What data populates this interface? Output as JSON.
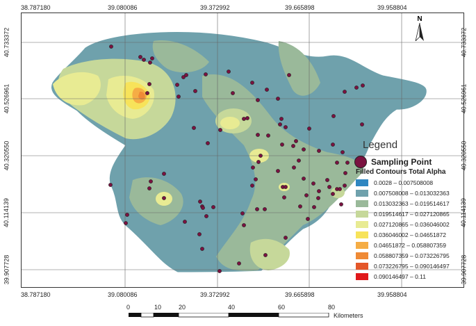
{
  "map": {
    "top_lon_labels": [
      "38.787180",
      "39.080086",
      "39.372992",
      "39.665898",
      "39.958804"
    ],
    "bottom_lon_labels": [
      "38.787180",
      "39.080086",
      "39.372992",
      "39.665898",
      "39.958804"
    ],
    "left_lat_labels": [
      "40.733372",
      "40.526961",
      "40.320550",
      "40.114139",
      "39.907728"
    ],
    "right_lat_labels": [
      "40.733372",
      "40.526961",
      "40.320550",
      "40.114139",
      "39.907728"
    ],
    "north_label": "N",
    "scale": {
      "ticks": [
        "0",
        "10",
        "20",
        "40",
        "60",
        "80"
      ],
      "unit": "Kilometers"
    }
  },
  "legend": {
    "title": "Legend",
    "sampling_label": "Sampling Point",
    "contours_title": "Filled Contours Total Alpha",
    "classes": [
      {
        "range": "0.0028 – 0.007508008",
        "color": "#2e86c1"
      },
      {
        "range": "0.007508008 – 0.013032363",
        "color": "#6fa1ac"
      },
      {
        "range": "0.013032363 – 0.019514617",
        "color": "#9ab99a"
      },
      {
        "range": "0.019514617 – 0.027120865",
        "color": "#c6d89a"
      },
      {
        "range": "0.027120865 – 0.036046002",
        "color": "#e8eb93"
      },
      {
        "range": "0.036046002 – 0.04651872",
        "color": "#f7e35a"
      },
      {
        "range": "0.04651872 – 0.058807359",
        "color": "#f5ad45"
      },
      {
        "range": "0.058807359 – 0.073226795",
        "color": "#ef8a36"
      },
      {
        "range": "0.073226795 – 0.090146497",
        "color": "#e4572a"
      },
      {
        "range": "0.090146497 – 0.11",
        "color": "#e0181b"
      }
    ]
  },
  "colors": {
    "sampling_point": "#7a1240"
  }
}
